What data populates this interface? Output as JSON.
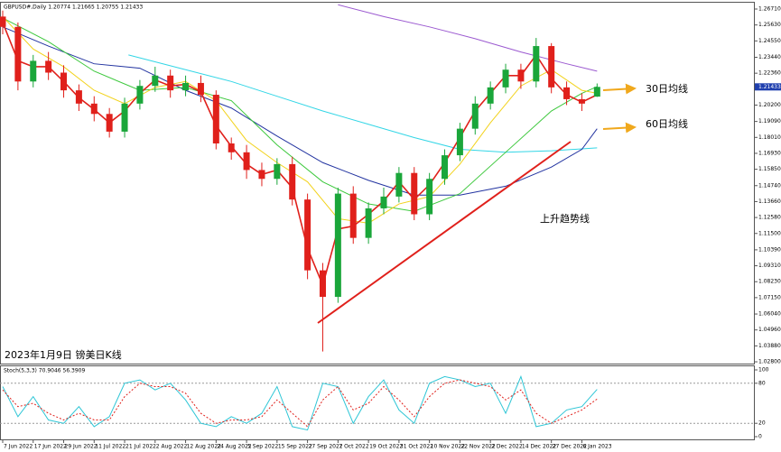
{
  "chart_data": {
    "type": "candlestick",
    "header": "GBPUSD#,Daily 1.20774 1.21665 1.20755 1.21433",
    "x": [
      0,
      4,
      8,
      12,
      16,
      20,
      24,
      28,
      32,
      36,
      40,
      44,
      48,
      52,
      56,
      60,
      64,
      68,
      72,
      76,
      80,
      84,
      88,
      92,
      96,
      100,
      104,
      108,
      112,
      116,
      120,
      124,
      128,
      132,
      136,
      140,
      144,
      148,
      152,
      156
    ],
    "open": [
      1.262,
      1.255,
      1.218,
      1.232,
      1.224,
      1.212,
      1.203,
      1.196,
      1.184,
      1.203,
      1.215,
      1.222,
      1.212,
      1.217,
      1.209,
      1.176,
      1.17,
      1.158,
      1.152,
      1.162,
      1.138,
      1.09,
      1.072,
      1.142,
      1.112,
      1.132,
      1.14,
      1.156,
      1.128,
      1.152,
      1.168,
      1.186,
      1.203,
      1.214,
      1.226,
      1.218,
      1.242,
      1.214,
      1.206,
      1.20774
    ],
    "high": [
      1.266,
      1.258,
      1.236,
      1.238,
      1.229,
      1.216,
      1.208,
      1.2,
      1.207,
      1.219,
      1.228,
      1.226,
      1.222,
      1.222,
      1.212,
      1.18,
      1.175,
      1.163,
      1.166,
      1.167,
      1.142,
      1.095,
      1.146,
      1.147,
      1.136,
      1.146,
      1.16,
      1.16,
      1.156,
      1.172,
      1.19,
      1.208,
      1.218,
      1.23,
      1.23,
      1.2475,
      1.244,
      1.218,
      1.21,
      1.21665
    ],
    "low": [
      1.25,
      1.212,
      1.214,
      1.219,
      1.207,
      1.198,
      1.191,
      1.18,
      1.18,
      1.199,
      1.211,
      1.207,
      1.208,
      1.204,
      1.172,
      1.165,
      1.152,
      1.147,
      1.148,
      1.134,
      1.084,
      1.035,
      1.068,
      1.108,
      1.108,
      1.128,
      1.136,
      1.124,
      1.124,
      1.148,
      1.164,
      1.182,
      1.199,
      1.21,
      1.213,
      1.214,
      1.21,
      1.202,
      1.198,
      1.20755
    ],
    "close": [
      1.255,
      1.218,
      1.232,
      1.224,
      1.212,
      1.203,
      1.196,
      1.184,
      1.203,
      1.215,
      1.222,
      1.212,
      1.217,
      1.209,
      1.176,
      1.17,
      1.158,
      1.152,
      1.162,
      1.138,
      1.09,
      1.072,
      1.142,
      1.112,
      1.132,
      1.14,
      1.156,
      1.128,
      1.152,
      1.168,
      1.186,
      1.203,
      1.214,
      1.226,
      1.218,
      1.242,
      1.214,
      1.206,
      1.203,
      1.21433
    ],
    "up_color": "#1aa63a",
    "down_color": "#e0201b",
    "lines": [
      {
        "color": "#9b59d0",
        "x": [
          88,
          100,
          112,
          124,
          136,
          148,
          156
        ],
        "values": [
          1.27,
          1.262,
          1.255,
          1.247,
          1.238,
          1.23,
          1.225
        ]
      },
      {
        "color": "#33d6e6",
        "x": [
          33,
          48,
          60,
          72,
          84,
          96,
          108,
          120,
          132,
          144,
          156
        ],
        "values": [
          1.236,
          1.226,
          1.218,
          1.208,
          1.198,
          1.189,
          1.18,
          1.172,
          1.17,
          1.171,
          1.173
        ]
      },
      {
        "color": "#2233a0",
        "x": [
          0,
          12,
          24,
          36,
          48,
          60,
          72,
          84,
          96,
          108,
          120,
          132,
          144,
          152,
          156
        ],
        "values": [
          1.255,
          1.242,
          1.23,
          1.227,
          1.212,
          1.2,
          1.181,
          1.163,
          1.151,
          1.141,
          1.141,
          1.147,
          1.16,
          1.172,
          1.186
        ]
      },
      {
        "color": "#3cc83c",
        "x": [
          0,
          12,
          24,
          36,
          48,
          60,
          72,
          84,
          96,
          108,
          120,
          132,
          144,
          152,
          156
        ],
        "values": [
          1.261,
          1.245,
          1.225,
          1.212,
          1.214,
          1.205,
          1.175,
          1.15,
          1.135,
          1.13,
          1.142,
          1.17,
          1.198,
          1.21,
          1.2145
        ]
      },
      {
        "color": "#f2d21b",
        "x": [
          0,
          8,
          16,
          24,
          32,
          40,
          48,
          56,
          64,
          72,
          80,
          88,
          96,
          104,
          112,
          120,
          128,
          136,
          144,
          152,
          156
        ],
        "values": [
          1.262,
          1.24,
          1.228,
          1.212,
          1.203,
          1.214,
          1.218,
          1.205,
          1.178,
          1.163,
          1.15,
          1.125,
          1.122,
          1.135,
          1.14,
          1.162,
          1.19,
          1.215,
          1.226,
          1.212,
          1.21
        ]
      },
      {
        "color": "#e0201b",
        "x": [
          0,
          4,
          8,
          12,
          16,
          20,
          24,
          28,
          32,
          36,
          40,
          44,
          48,
          52,
          56,
          60,
          64,
          68,
          72,
          76,
          80,
          84,
          88,
          92,
          96,
          100,
          104,
          108,
          112,
          116,
          120,
          124,
          128,
          132,
          136,
          140,
          144,
          148,
          152,
          156
        ],
        "values": [
          1.258,
          1.232,
          1.228,
          1.228,
          1.218,
          1.207,
          1.199,
          1.19,
          1.198,
          1.21,
          1.219,
          1.215,
          1.216,
          1.211,
          1.188,
          1.174,
          1.162,
          1.155,
          1.158,
          1.146,
          1.105,
          1.08,
          1.118,
          1.12,
          1.128,
          1.137,
          1.15,
          1.138,
          1.148,
          1.163,
          1.18,
          1.198,
          1.21,
          1.222,
          1.222,
          1.236,
          1.22,
          1.209,
          1.204,
          1.209
        ]
      }
    ],
    "xlim": [
      0,
      197
    ],
    "xticks": [
      {
        "value": 0,
        "label": "7 Jun 2022"
      },
      {
        "value": 8,
        "label": "17 Jun 2022"
      },
      {
        "value": 16,
        "label": "29 Jun 2022"
      },
      {
        "value": 24,
        "label": "11 Jul 2022"
      },
      {
        "value": 32,
        "label": "21 Jul 2022"
      },
      {
        "value": 40,
        "label": "2 Aug 2022"
      },
      {
        "value": 48,
        "label": "12 Aug 2022"
      },
      {
        "value": 56,
        "label": "24 Aug 2022"
      },
      {
        "value": 64,
        "label": "5 Sep 2022"
      },
      {
        "value": 72,
        "label": "15 Sep 2022"
      },
      {
        "value": 80,
        "label": "27 Sep 2022"
      },
      {
        "value": 88,
        "label": "7 Oct 2022"
      },
      {
        "value": 96,
        "label": "19 Oct 2022"
      },
      {
        "value": 104,
        "label": "31 Oct 2022"
      },
      {
        "value": 112,
        "label": "10 Nov 2022"
      },
      {
        "value": 120,
        "label": "22 Nov 2022"
      },
      {
        "value": 128,
        "label": "2 Dec 2022"
      },
      {
        "value": 136,
        "label": "14 Dec 2022"
      },
      {
        "value": 144,
        "label": "27 Dec 2022"
      },
      {
        "value": 152,
        "label": "6 Jan 2023"
      }
    ],
    "ylim": [
      1.0268,
      1.272
    ],
    "yticks": [
      {
        "value": 1.2671,
        "label": "1.26710"
      },
      {
        "value": 1.2563,
        "label": "1.25630"
      },
      {
        "value": 1.2455,
        "label": "1.24550"
      },
      {
        "value": 1.2344,
        "label": "1.23440"
      },
      {
        "value": 1.2236,
        "label": "1.22360"
      },
      {
        "value": 1.202,
        "label": "1.20200"
      },
      {
        "value": 1.1909,
        "label": "1.19090"
      },
      {
        "value": 1.1801,
        "label": "1.18010"
      },
      {
        "value": 1.1693,
        "label": "1.16930"
      },
      {
        "value": 1.1585,
        "label": "1.15850"
      },
      {
        "value": 1.1474,
        "label": "1.14740"
      },
      {
        "value": 1.1366,
        "label": "1.13660"
      },
      {
        "value": 1.1258,
        "label": "1.12580"
      },
      {
        "value": 1.115,
        "label": "1.11500"
      },
      {
        "value": 1.1039,
        "label": "1.10390"
      },
      {
        "value": 1.0931,
        "label": "1.09310"
      },
      {
        "value": 1.0823,
        "label": "1.08230"
      },
      {
        "value": 1.0715,
        "label": "1.07150"
      },
      {
        "value": 1.0604,
        "label": "1.06040"
      },
      {
        "value": 1.0496,
        "label": "1.04960"
      },
      {
        "value": 1.0388,
        "label": "1.03880"
      },
      {
        "value": 1.028,
        "label": "1.02800"
      }
    ],
    "last_price": 1.21433,
    "ma30_label": "30日均线",
    "ma60_label": "60日均线",
    "trend_label": "上升趋势线",
    "caption": "2023年1月9日 镑美日K线",
    "stoch": {
      "type": "line",
      "label": "Stoch(5,3,3) 70.9046 56.3909",
      "ylim": [
        0,
        100
      ],
      "yticks": [
        100,
        80,
        20,
        0
      ],
      "levels": [
        80,
        20
      ],
      "series": [
        {
          "color": "#2ec6d6",
          "values": [
            75,
            30,
            60,
            25,
            20,
            45,
            15,
            30,
            80,
            85,
            70,
            80,
            55,
            20,
            15,
            30,
            20,
            35,
            75,
            15,
            10,
            80,
            75,
            20,
            60,
            85,
            40,
            20,
            80,
            90,
            85,
            75,
            80,
            35,
            90,
            15,
            20,
            40,
            45,
            70.9046
          ]
        },
        {
          "color": "#e0201b",
          "dashed": true,
          "values": [
            70,
            45,
            50,
            35,
            25,
            35,
            25,
            25,
            60,
            80,
            75,
            75,
            65,
            35,
            20,
            25,
            25,
            30,
            55,
            35,
            15,
            55,
            75,
            40,
            50,
            75,
            55,
            30,
            60,
            80,
            85,
            80,
            75,
            55,
            70,
            35,
            20,
            30,
            40,
            56.3909
          ]
        }
      ]
    }
  }
}
